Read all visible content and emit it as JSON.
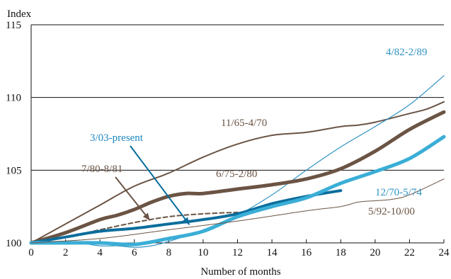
{
  "chart_data": {
    "type": "line",
    "ylabel": "Index",
    "xlabel": "Number of months",
    "xlim": [
      0,
      24
    ],
    "ylim": [
      100,
      115
    ],
    "xticks": [
      0,
      2,
      4,
      6,
      8,
      10,
      12,
      14,
      16,
      18,
      20,
      22,
      24
    ],
    "yticks": [
      100,
      105,
      110,
      115
    ],
    "grid": "horizontal gridlines at 105, 110, 115",
    "colors": {
      "brown": "#6b5444",
      "dark_blue": "#0a6d9c",
      "light_blue": "#3aaed6",
      "axis": "#111111"
    },
    "series": [
      {
        "name": "11/65-4/70",
        "color": "#6b5444",
        "width": 2,
        "dash": "",
        "x": [
          0,
          2,
          4,
          6,
          8,
          10,
          12,
          14,
          16,
          18,
          19,
          20,
          22,
          23,
          24
        ],
        "y": [
          100.0,
          101.3,
          102.6,
          103.9,
          104.8,
          105.9,
          106.8,
          107.4,
          107.6,
          108.0,
          108.1,
          108.3,
          108.9,
          109.2,
          109.7
        ]
      },
      {
        "name": "4/82-2/89",
        "color": "#2f93c2",
        "width": 1.2,
        "dash": "",
        "x": [
          0,
          2,
          4,
          5,
          6,
          7,
          8,
          10,
          12,
          14,
          16,
          18,
          20,
          22,
          24
        ],
        "y": [
          100.0,
          100.1,
          99.8,
          99.8,
          99.7,
          99.8,
          100.1,
          100.9,
          101.9,
          103.3,
          105.0,
          106.6,
          108.0,
          109.5,
          111.5
        ]
      },
      {
        "name": "6/75-2/80",
        "color": "#6b5444",
        "width": 5,
        "dash": "",
        "x": [
          0,
          2,
          4,
          5,
          6,
          7,
          8,
          9,
          10,
          12,
          14,
          16,
          18,
          20,
          22,
          24
        ],
        "y": [
          100.0,
          100.7,
          101.6,
          101.9,
          102.3,
          102.8,
          103.2,
          103.4,
          103.4,
          103.7,
          104.0,
          104.4,
          105.1,
          106.3,
          107.8,
          109.0
        ]
      },
      {
        "name": "7/80-8/81",
        "color": "#6b5444",
        "width": 2,
        "dash": "6,4",
        "x": [
          0,
          2,
          4,
          6,
          8,
          10,
          12
        ],
        "y": [
          100.0,
          100.4,
          100.9,
          101.4,
          101.8,
          102.0,
          102.1
        ]
      },
      {
        "name": "3/03-present",
        "color": "#0a6d9c",
        "width": 4,
        "dash": "",
        "x": [
          0,
          2,
          4,
          6,
          8,
          10,
          12,
          14,
          16,
          18
        ],
        "y": [
          100.0,
          100.4,
          100.8,
          101.0,
          101.3,
          101.6,
          102.0,
          102.7,
          103.2,
          103.6
        ]
      },
      {
        "name": "12/70-5/74",
        "color": "#3aaed6",
        "width": 5,
        "dash": "",
        "x": [
          0,
          2,
          4,
          6,
          8,
          10,
          12,
          14,
          16,
          18,
          20,
          22,
          24
        ],
        "y": [
          100.0,
          100.0,
          100.0,
          99.9,
          100.3,
          100.8,
          101.8,
          102.5,
          103.1,
          104.1,
          104.9,
          105.8,
          107.3
        ]
      },
      {
        "name": "5/92-10/00",
        "color": "#6b5444",
        "width": 1,
        "dash": "",
        "x": [
          0,
          4,
          8,
          12,
          16,
          18,
          19,
          20,
          21,
          22,
          24
        ],
        "y": [
          100.0,
          100.3,
          100.9,
          101.5,
          102.2,
          102.5,
          102.8,
          102.9,
          103.0,
          103.3,
          104.4
        ]
      }
    ],
    "annotations": [
      {
        "text": "11/65-4/70",
        "color": "#6b5444"
      },
      {
        "text": "4/82-2/89",
        "color": "#2f93c2"
      },
      {
        "text": "3/03-present",
        "color": "#1a88c2"
      },
      {
        "text": "7/80-8/81",
        "color": "#6b5444"
      },
      {
        "text": "6/75-2/80",
        "color": "#6b5444"
      },
      {
        "text": "12/70-5/74",
        "color": "#2f93c2"
      },
      {
        "text": "5/92-10/00",
        "color": "#6b5444"
      }
    ]
  }
}
